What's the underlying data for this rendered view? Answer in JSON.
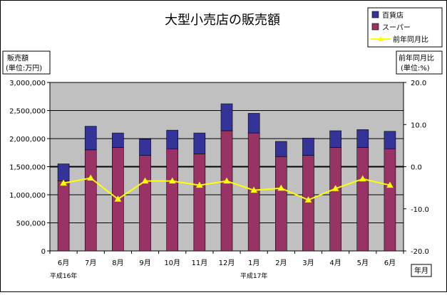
{
  "chart_data": {
    "type": "bar",
    "title": "大型小売店の販売額",
    "categories": [
      "6月",
      "7月",
      "8月",
      "9月",
      "10月",
      "11月",
      "12月",
      "1月",
      "2月",
      "3月",
      "4月",
      "5月",
      "6月"
    ],
    "era_labels": [
      {
        "label": "平成16年",
        "start_category": 0
      },
      {
        "label": "平成17年",
        "start_category": 7
      }
    ],
    "xlabel": "年月",
    "y_left": {
      "label_line1": "販売額",
      "label_line2": "(単位:万円)",
      "ylim": [
        0,
        3000000
      ],
      "ticks": [
        0,
        500000,
        1000000,
        1500000,
        2000000,
        2500000,
        3000000
      ],
      "tick_labels": [
        "0",
        "500,000",
        "1,000,000",
        "1,500,000",
        "2,000,000",
        "2,500,000",
        "3,000,000"
      ]
    },
    "y_right": {
      "label_line1": "前年同月比",
      "label_line2": "(単位:%)",
      "ylim": [
        -20,
        20
      ],
      "ticks": [
        -20,
        -10,
        0,
        10,
        20
      ],
      "tick_labels": [
        "-20.0",
        "-10.0",
        "0.0",
        "10.0",
        "20.0"
      ]
    },
    "stacked": true,
    "series": [
      {
        "name": "スーパー",
        "kind": "bar",
        "axis": "left",
        "color": "#993366",
        "values": [
          1250000,
          1800000,
          1840000,
          1700000,
          1820000,
          1730000,
          2140000,
          2100000,
          1680000,
          1700000,
          1840000,
          1840000,
          1820000
        ]
      },
      {
        "name": "百貨店",
        "kind": "bar",
        "axis": "left",
        "color": "#333399",
        "values": [
          300000,
          420000,
          260000,
          290000,
          330000,
          370000,
          480000,
          350000,
          270000,
          310000,
          300000,
          320000,
          310000
        ]
      },
      {
        "name": "前年同月比",
        "kind": "line",
        "axis": "right",
        "color": "#ffff00",
        "values": [
          -3.9,
          -2.7,
          -7.7,
          -3.4,
          -3.4,
          -4.4,
          -3.4,
          -5.6,
          -5.1,
          -7.9,
          -5.2,
          -2.9,
          -4.4
        ]
      }
    ],
    "legend_order": [
      "百貨店",
      "スーパー",
      "前年同月比"
    ],
    "legend_position": "top-right",
    "plot_background": "#c0c0c0",
    "grid": true
  }
}
